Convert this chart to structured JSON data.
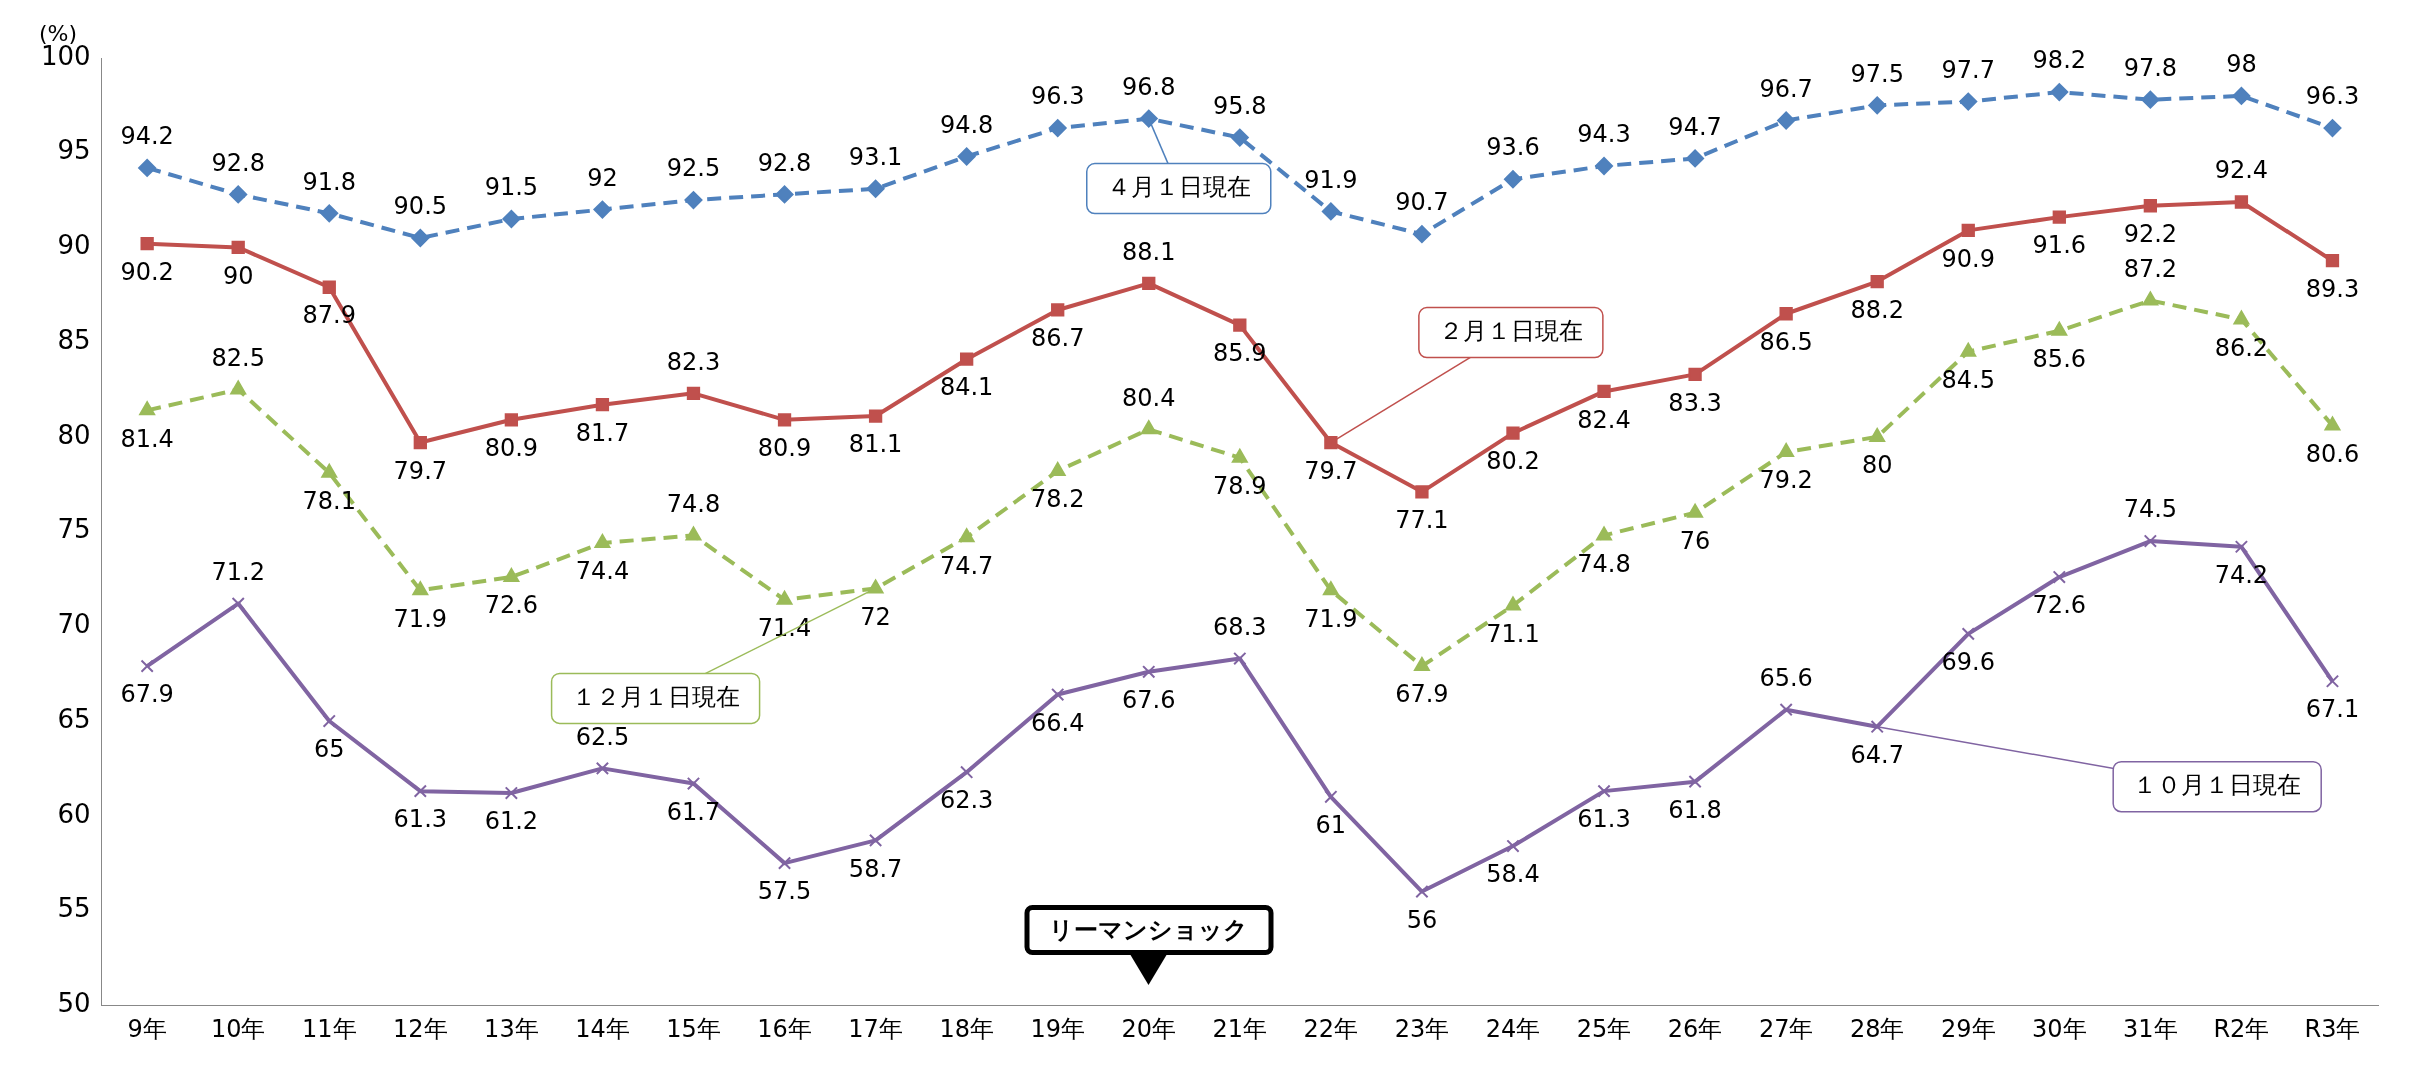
{
  "chart_data": {
    "type": "line",
    "ylabel": "(%)",
    "categories": [
      "9年",
      "10年",
      "11年",
      "12年",
      "13年",
      "14年",
      "15年",
      "16年",
      "17年",
      "18年",
      "19年",
      "20年",
      "21年",
      "22年",
      "23年",
      "24年",
      "25年",
      "26年",
      "27年",
      "28年",
      "29年",
      "30年",
      "31年",
      "R2年",
      "R3年"
    ],
    "series": [
      {
        "name": "４月１日現在",
        "color": "#4f81bd",
        "marker": "diamond",
        "line_style": "dashed",
        "values": [
          94.2,
          92.8,
          91.8,
          90.5,
          91.5,
          92,
          92.5,
          92.8,
          93.1,
          94.8,
          96.3,
          96.8,
          95.8,
          91.9,
          90.7,
          93.6,
          94.3,
          94.7,
          96.7,
          97.5,
          97.7,
          98.2,
          97.8,
          98,
          96.3
        ]
      },
      {
        "name": "２月１日現在",
        "color": "#c0504d",
        "marker": "square",
        "line_style": "solid",
        "values": [
          90.2,
          90,
          87.9,
          79.7,
          80.9,
          81.7,
          82.3,
          80.9,
          81.1,
          84.1,
          86.7,
          88.1,
          85.9,
          79.7,
          77.1,
          80.2,
          82.4,
          83.3,
          86.5,
          88.2,
          90.9,
          91.6,
          92.2,
          92.4,
          89.3
        ]
      },
      {
        "name": "１２月１日現在",
        "color": "#9bbb59",
        "marker": "triangle",
        "line_style": "dashed",
        "values": [
          81.4,
          82.5,
          78.1,
          71.9,
          72.6,
          74.4,
          74.8,
          71.4,
          72,
          74.7,
          78.2,
          80.4,
          78.9,
          71.9,
          67.9,
          71.1,
          74.8,
          76,
          79.2,
          80,
          84.5,
          85.6,
          87.2,
          86.2,
          80.6
        ]
      },
      {
        "name": "１０月１日現在",
        "color": "#8064a2",
        "marker": "cross",
        "line_style": "solid",
        "values": [
          67.9,
          71.2,
          65,
          61.3,
          61.2,
          62.5,
          61.7,
          57.5,
          58.7,
          62.3,
          66.4,
          67.6,
          68.3,
          61,
          56,
          58.4,
          61.3,
          61.8,
          65.6,
          64.7,
          69.6,
          72.6,
          74.5,
          74.2,
          67.1
        ]
      }
    ],
    "ylim": [
      50,
      100
    ],
    "yticks": [
      50,
      55,
      60,
      65,
      70,
      75,
      80,
      85,
      90,
      95,
      100
    ],
    "grid": false,
    "legend": false,
    "data_labels": true,
    "annotations": [
      "リーマンショック"
    ]
  }
}
